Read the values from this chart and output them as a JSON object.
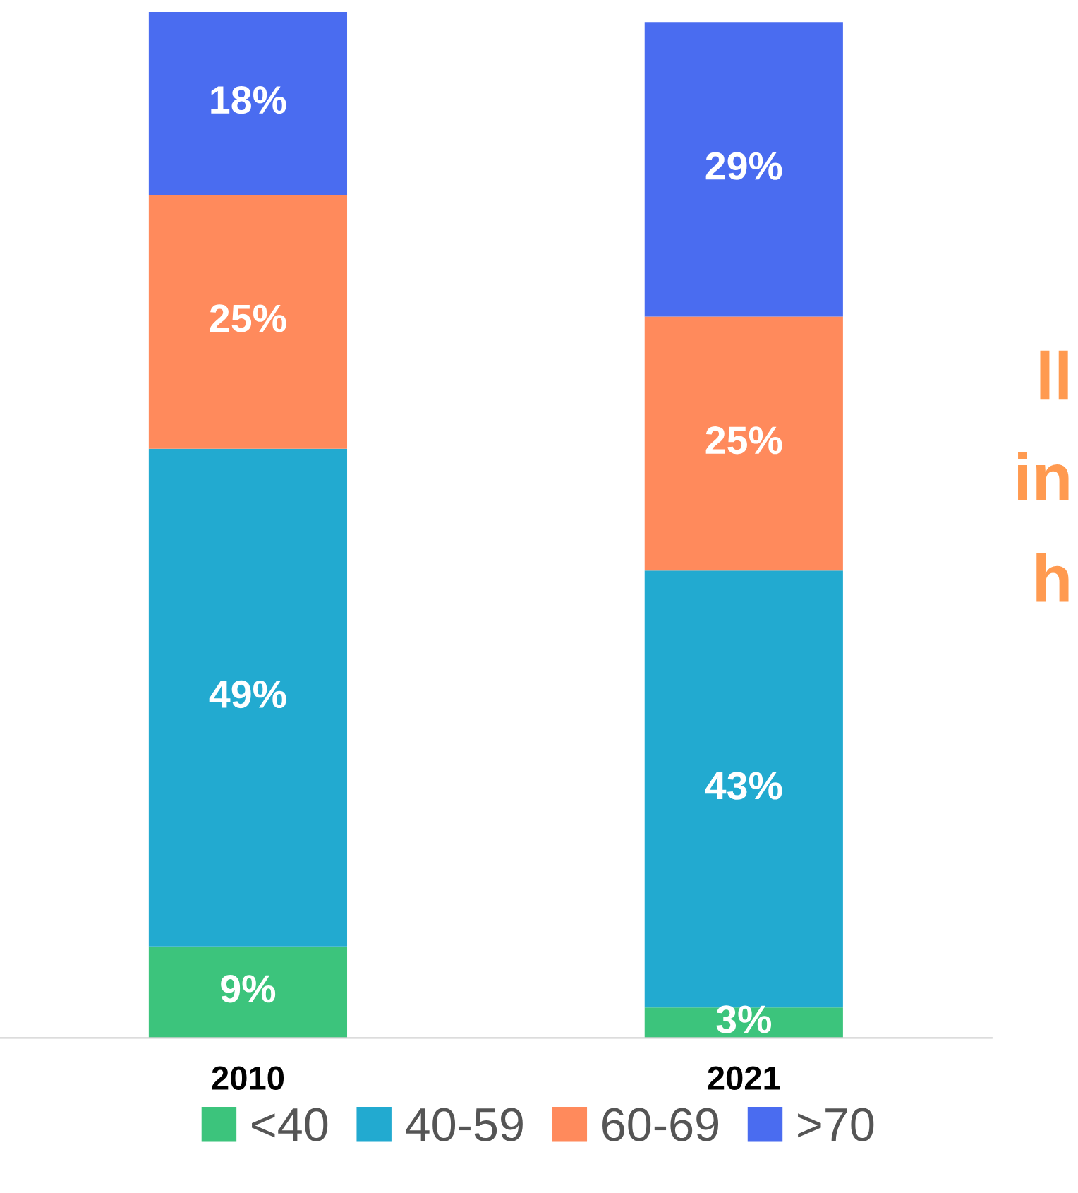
{
  "chart_data": {
    "type": "bar",
    "stacked": true,
    "categories": [
      "2010",
      "2021"
    ],
    "series": [
      {
        "name": "<40",
        "color": "#3cc47c",
        "values": [
          9,
          3
        ],
        "value_labels": [
          "9%",
          "3%"
        ]
      },
      {
        "name": "40-59",
        "color": "#22aad0",
        "values": [
          49,
          43
        ],
        "value_labels": [
          "49%",
          "43%"
        ]
      },
      {
        "name": "60-69",
        "color": "#ff8a5c",
        "values": [
          25,
          25
        ],
        "value_labels": [
          "25%",
          "25%"
        ]
      },
      {
        "name": ">70",
        "color": "#4a6cf0",
        "values": [
          18,
          29
        ],
        "value_labels": [
          "18%",
          "29%"
        ]
      }
    ],
    "legend": "bottom",
    "grid": false,
    "annotations": [
      "ll",
      "in",
      "h"
    ]
  }
}
